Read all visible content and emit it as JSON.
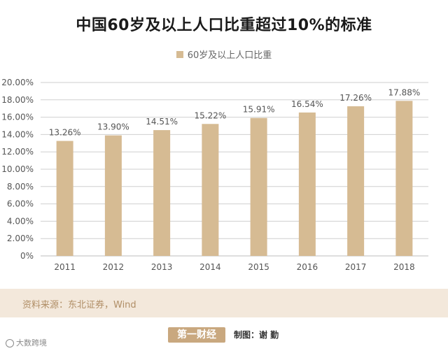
{
  "chart_data": {
    "type": "bar",
    "title": "中国60岁及以上人口比重超过10%的标准",
    "categories": [
      "2011",
      "2012",
      "2013",
      "2014",
      "2015",
      "2016",
      "2017",
      "2018"
    ],
    "series": [
      {
        "name": "60岁及以上人口比重",
        "values": [
          13.26,
          13.9,
          14.51,
          15.22,
          15.91,
          16.54,
          17.26,
          17.88
        ],
        "labels": [
          "13.26%",
          "13.90%",
          "14.51%",
          "15.22%",
          "15.91%",
          "16.54%",
          "17.26%",
          "17.88%"
        ]
      }
    ],
    "ylim": [
      0,
      20
    ],
    "yticks": [
      "0%",
      "2.00%",
      "4.00%",
      "6.00%",
      "8.00%",
      "10.00%",
      "12.00%",
      "14.00%",
      "16.00%",
      "18.00%",
      "20.00%"
    ],
    "grid": true,
    "legend_position": "top-center",
    "xlabel": "",
    "ylabel": ""
  },
  "source": "资料来源：东北证券，Wind",
  "footer": {
    "logo_text": "第一财经",
    "credit": "制图：谢 勤",
    "corner_mark": "大数跨境"
  },
  "colors": {
    "bar": "#d6bb93",
    "grid": "#cfcfcf",
    "axis_text": "#555555",
    "label_text": "#555555",
    "source_bg": "#f3e8db",
    "source_text": "#b08e66"
  }
}
